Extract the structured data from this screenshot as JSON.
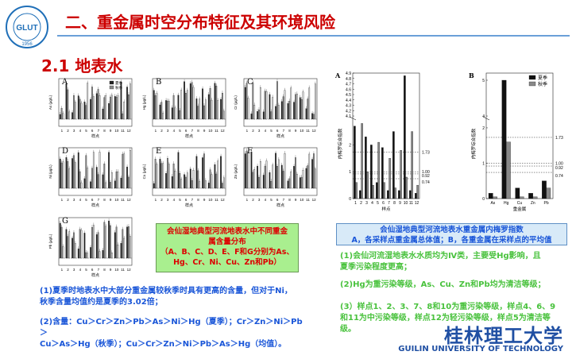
{
  "header": {
    "title": "二、重金属时空分布特征及其环境风险",
    "section": "2.1 地表水",
    "logo_year": "1956",
    "logo_text": "GLUT"
  },
  "small_panels": [
    {
      "letter": "A",
      "ylabel": "As (μg/L)",
      "xlabel": "样点"
    },
    {
      "letter": "B",
      "ylabel": "Hg (μg/L)",
      "xlabel": "样点"
    },
    {
      "letter": "C",
      "ylabel": "Cr (μg/L)",
      "xlabel": "样点"
    },
    {
      "letter": "D",
      "ylabel": "Ni (μg/L)",
      "xlabel": "样点"
    },
    {
      "letter": "E",
      "ylabel": "Cu (μg/L)",
      "xlabel": "样点"
    },
    {
      "letter": "F",
      "ylabel": "Zn (μg/L)",
      "xlabel": "样点"
    },
    {
      "letter": "G",
      "ylabel": "Pb (μg/L)",
      "xlabel": "样点"
    }
  ],
  "small_panel_ticks": [
    "1",
    "2",
    "3",
    "4",
    "5",
    "6",
    "7",
    "8",
    "9",
    "10",
    "11",
    "12"
  ],
  "small_legend": [
    "夏季",
    "秋季"
  ],
  "green_box": {
    "line1": "会仙湿地典型河流地表水中不同重金",
    "line2": "属含量分布",
    "line3": "（A、B、C、D、E、F和G分别为As、",
    "line4": "Hg、Cr、Ni、Cu、Zn和Pb）"
  },
  "left_notes": {
    "p1_l1": "(1)夏季时地表水中大部分重金属较秋季时具有更高的含量，但对于Ni，",
    "p1_l2": "秋季含量均值约是夏季的3.02倍；",
    "p2_l1": "(2)含量：Cu＞Cr＞Zn＞Pb＞As＞Ni＞Hg（夏季）；Cr＞Zn＞Ni＞Pb＞",
    "p2_l2": "Cu＞As＞Hg（秋季）；Cu＞Cr＞Zn＞Ni＞Pb＞As＞Hg（均值）。"
  },
  "chart_data": [
    {
      "type": "bar",
      "panel": "A",
      "ylabel": "内梅罗综合指数",
      "xlabel": "样点",
      "yticks_low": [
        "0",
        "1",
        "2"
      ],
      "yticks_high": [
        "4.1",
        "4.2",
        "4.3",
        "4.4",
        "4.5",
        "4.6",
        "4.7",
        "4.8",
        "4.9"
      ],
      "ref_lines": [
        1.73,
        1.0,
        0.92,
        0.74
      ],
      "ref_labels": [
        "1.73",
        "1.00",
        "0.92",
        "0.74"
      ],
      "categories": [
        "1",
        "2",
        "3",
        "4",
        "5",
        "6",
        "7",
        "8",
        "9",
        "10",
        "11",
        "12"
      ],
      "series": [
        {
          "name": "夏季",
          "values": [
            2.7,
            0.3,
            2.3,
            2.0,
            0.6,
            1.9,
            0.3,
            2.5,
            0.3,
            4.85,
            0.3,
            0.2
          ]
        },
        {
          "name": "秋季",
          "values": [
            0.6,
            2.8,
            1.0,
            0.5,
            2.1,
            0.6,
            1.5,
            0.4,
            1.8,
            0.8,
            2.5,
            0.5
          ]
        }
      ]
    },
    {
      "type": "bar",
      "panel": "B",
      "ylabel": "内梅罗综合指数",
      "xlabel": "重金属",
      "yticks_low": [
        "0",
        "1",
        "2"
      ],
      "yticks_high": [
        "4",
        "5"
      ],
      "ref_lines": [
        1.73,
        1.0,
        0.92,
        0.74
      ],
      "ref_labels": [
        "1.73",
        "1.00",
        "0.92",
        "0.74"
      ],
      "categories": [
        "As",
        "Hg",
        "Cu",
        "Zn",
        "Pb"
      ],
      "series": [
        {
          "name": "夏季",
          "values": [
            0.15,
            5.0,
            0.3,
            0.15,
            0.5
          ]
        },
        {
          "name": "秋季",
          "values": [
            0.05,
            1.6,
            0.05,
            0.05,
            0.3
          ]
        }
      ]
    }
  ],
  "blue_box": {
    "line1": "会仙湿地典型河流地表水重金属内梅罗指数",
    "line2": "A，各采样点重金属总体值；B，各重金属在采样点的平均值"
  },
  "right_notes": {
    "p1_l1": "(1)会仙河流湿地表水水质均为Ⅳ类，主要受Hg影响，且",
    "p1_l2": "夏季污染程度更高；",
    "p2": "(2)Hg为重污染等级，As、Cu、Zn和Pb均为清洁等级；",
    "p3_l1": "(3）样点1、2、3、7、8和10为重污染等级，样点4、6、9",
    "p3_l2": "和11为中污染等级，样点12为轻污染等级，样点5为清洁等",
    "p3_l3": "级。"
  },
  "footer": {
    "logo_cn": "桂林理工大学",
    "logo_en": "GUILIN UNIVERSITY OF TECHNOLOGY"
  },
  "colors": {
    "title_red": "#cc0000",
    "note_blue": "#1a56d8",
    "note_green": "#49c23d",
    "brand_blue": "#1f4fa3"
  }
}
